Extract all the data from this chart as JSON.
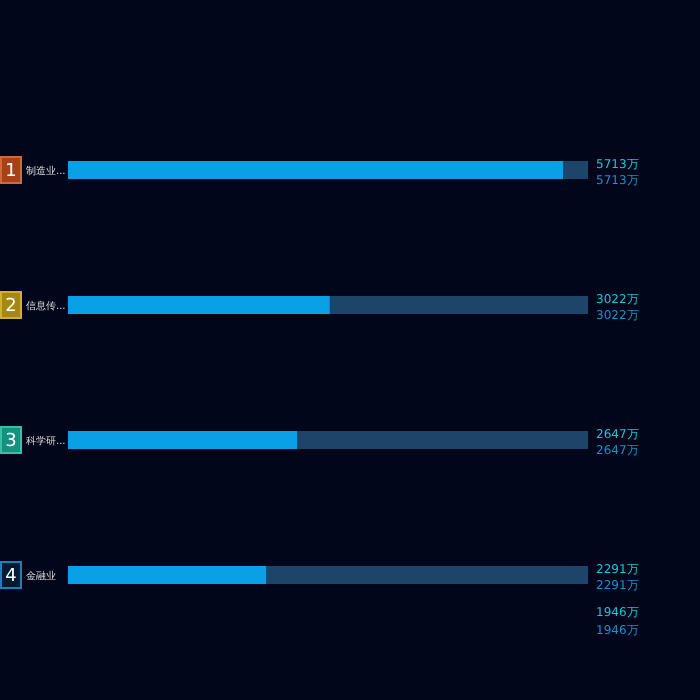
{
  "chart_data": {
    "type": "bar",
    "orientation": "horizontal",
    "stacked": true,
    "categories": [
      "制造业...",
      "信息传...",
      "科学研...",
      "金融业"
    ],
    "series": [
      {
        "color": "#0aa0e6",
        "values": [
          5713,
          3022,
          2647,
          2291
        ],
        "value_labels": [
          "5713万",
          "3022万",
          "2647万",
          "2291万"
        ]
      },
      {
        "color": "#1d4569",
        "values": [
          287,
          2978,
          3353,
          3709
        ]
      }
    ],
    "xlim": [
      0,
      6000
    ],
    "annotations": [
      "1",
      "2",
      "3",
      "4",
      "1946万"
    ]
  }
}
